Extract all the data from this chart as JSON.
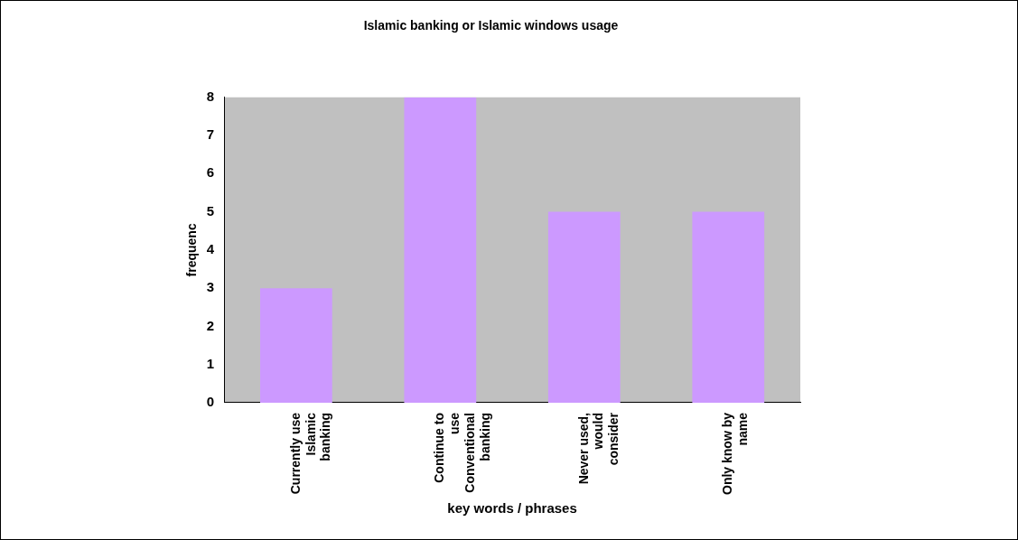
{
  "chart_data": {
    "type": "bar",
    "title": "Islamic banking or Islamic windows usage",
    "xlabel": "key words / phrases",
    "ylabel": "frequenc",
    "categories": [
      "Currently use Islamic banking",
      "Continue to use Conventional banking",
      "Never used, would consider",
      "Only know by name"
    ],
    "values": [
      3,
      8,
      5,
      5
    ],
    "color": "#cc99ff",
    "ylim": [
      0,
      8
    ],
    "yticks": [
      0,
      1,
      2,
      3,
      4,
      5,
      6,
      7,
      8
    ],
    "grid": false,
    "legend": false
  }
}
